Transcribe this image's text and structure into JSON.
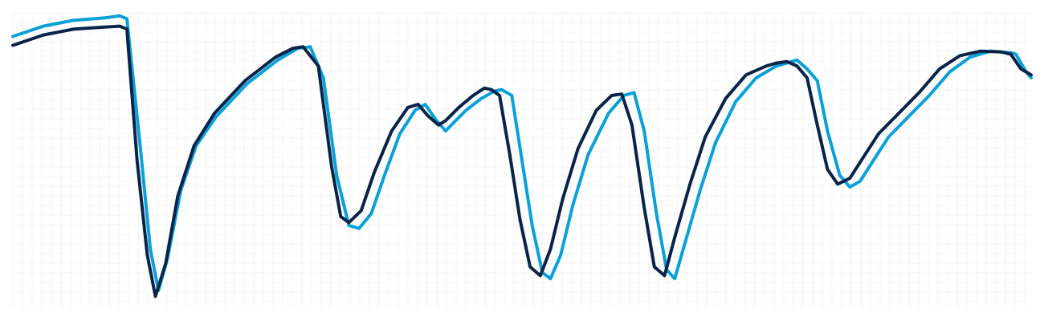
{
  "chart_data": {
    "type": "line",
    "grid": true,
    "legend": "none",
    "xlim": [
      0,
      1
    ],
    "ylim": [
      0,
      1
    ],
    "series": [
      {
        "color": "#0aa0d8",
        "points": [
          [
            0.0,
            0.92
          ],
          [
            0.03,
            0.955
          ],
          [
            0.06,
            0.975
          ],
          [
            0.09,
            0.983
          ],
          [
            0.105,
            0.99
          ],
          [
            0.112,
            0.98
          ],
          [
            0.125,
            0.55
          ],
          [
            0.135,
            0.2
          ],
          [
            0.143,
            0.06
          ],
          [
            0.152,
            0.17
          ],
          [
            0.165,
            0.4
          ],
          [
            0.18,
            0.55
          ],
          [
            0.2,
            0.65
          ],
          [
            0.23,
            0.76
          ],
          [
            0.26,
            0.84
          ],
          [
            0.28,
            0.88
          ],
          [
            0.292,
            0.885
          ],
          [
            0.305,
            0.78
          ],
          [
            0.318,
            0.45
          ],
          [
            0.33,
            0.28
          ],
          [
            0.34,
            0.27
          ],
          [
            0.352,
            0.32
          ],
          [
            0.365,
            0.45
          ],
          [
            0.38,
            0.59
          ],
          [
            0.395,
            0.67
          ],
          [
            0.405,
            0.69
          ],
          [
            0.415,
            0.64
          ],
          [
            0.425,
            0.6
          ],
          [
            0.432,
            0.625
          ],
          [
            0.445,
            0.67
          ],
          [
            0.46,
            0.71
          ],
          [
            0.473,
            0.735
          ],
          [
            0.48,
            0.74
          ],
          [
            0.49,
            0.72
          ],
          [
            0.5,
            0.5
          ],
          [
            0.51,
            0.28
          ],
          [
            0.52,
            0.12
          ],
          [
            0.528,
            0.1
          ],
          [
            0.538,
            0.18
          ],
          [
            0.55,
            0.35
          ],
          [
            0.565,
            0.52
          ],
          [
            0.585,
            0.66
          ],
          [
            0.6,
            0.72
          ],
          [
            0.61,
            0.73
          ],
          [
            0.62,
            0.6
          ],
          [
            0.632,
            0.32
          ],
          [
            0.642,
            0.13
          ],
          [
            0.65,
            0.1
          ],
          [
            0.66,
            0.22
          ],
          [
            0.675,
            0.4
          ],
          [
            0.69,
            0.56
          ],
          [
            0.71,
            0.7
          ],
          [
            0.73,
            0.78
          ],
          [
            0.75,
            0.82
          ],
          [
            0.76,
            0.83
          ],
          [
            0.77,
            0.84
          ],
          [
            0.78,
            0.81
          ],
          [
            0.79,
            0.77
          ],
          [
            0.8,
            0.6
          ],
          [
            0.812,
            0.45
          ],
          [
            0.822,
            0.41
          ],
          [
            0.832,
            0.43
          ],
          [
            0.845,
            0.5
          ],
          [
            0.86,
            0.58
          ],
          [
            0.88,
            0.65
          ],
          [
            0.9,
            0.72
          ],
          [
            0.92,
            0.8
          ],
          [
            0.94,
            0.85
          ],
          [
            0.96,
            0.87
          ],
          [
            0.98,
            0.865
          ],
          [
            0.985,
            0.86
          ],
          [
            0.995,
            0.8
          ],
          [
            1.0,
            0.78
          ]
        ]
      },
      {
        "color": "#0a2348",
        "points": [
          [
            0.0,
            0.89
          ],
          [
            0.03,
            0.925
          ],
          [
            0.06,
            0.945
          ],
          [
            0.09,
            0.952
          ],
          [
            0.105,
            0.955
          ],
          [
            0.112,
            0.945
          ],
          [
            0.122,
            0.5
          ],
          [
            0.132,
            0.18
          ],
          [
            0.14,
            0.04
          ],
          [
            0.15,
            0.15
          ],
          [
            0.162,
            0.38
          ],
          [
            0.178,
            0.55
          ],
          [
            0.198,
            0.66
          ],
          [
            0.228,
            0.77
          ],
          [
            0.258,
            0.85
          ],
          [
            0.275,
            0.88
          ],
          [
            0.285,
            0.885
          ],
          [
            0.3,
            0.82
          ],
          [
            0.313,
            0.48
          ],
          [
            0.322,
            0.31
          ],
          [
            0.33,
            0.29
          ],
          [
            0.342,
            0.33
          ],
          [
            0.355,
            0.46
          ],
          [
            0.372,
            0.6
          ],
          [
            0.388,
            0.68
          ],
          [
            0.398,
            0.69
          ],
          [
            0.408,
            0.65
          ],
          [
            0.418,
            0.62
          ],
          [
            0.425,
            0.635
          ],
          [
            0.438,
            0.68
          ],
          [
            0.452,
            0.72
          ],
          [
            0.463,
            0.745
          ],
          [
            0.47,
            0.74
          ],
          [
            0.478,
            0.72
          ],
          [
            0.488,
            0.52
          ],
          [
            0.498,
            0.3
          ],
          [
            0.508,
            0.14
          ],
          [
            0.518,
            0.11
          ],
          [
            0.528,
            0.2
          ],
          [
            0.54,
            0.37
          ],
          [
            0.555,
            0.54
          ],
          [
            0.573,
            0.67
          ],
          [
            0.588,
            0.72
          ],
          [
            0.598,
            0.725
          ],
          [
            0.608,
            0.62
          ],
          [
            0.62,
            0.34
          ],
          [
            0.63,
            0.14
          ],
          [
            0.64,
            0.11
          ],
          [
            0.65,
            0.24
          ],
          [
            0.665,
            0.42
          ],
          [
            0.68,
            0.58
          ],
          [
            0.7,
            0.71
          ],
          [
            0.72,
            0.79
          ],
          [
            0.74,
            0.82
          ],
          [
            0.75,
            0.83
          ],
          [
            0.76,
            0.835
          ],
          [
            0.77,
            0.82
          ],
          [
            0.78,
            0.78
          ],
          [
            0.79,
            0.62
          ],
          [
            0.8,
            0.47
          ],
          [
            0.81,
            0.42
          ],
          [
            0.822,
            0.44
          ],
          [
            0.835,
            0.51
          ],
          [
            0.85,
            0.59
          ],
          [
            0.87,
            0.66
          ],
          [
            0.89,
            0.73
          ],
          [
            0.91,
            0.81
          ],
          [
            0.93,
            0.855
          ],
          [
            0.95,
            0.87
          ],
          [
            0.97,
            0.868
          ],
          [
            0.98,
            0.86
          ],
          [
            0.99,
            0.81
          ],
          [
            1.0,
            0.79
          ]
        ]
      }
    ]
  }
}
